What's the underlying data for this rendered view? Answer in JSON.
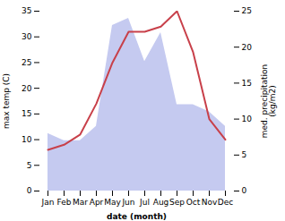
{
  "chart_data": {
    "type": "line",
    "categories": [
      "Jan",
      "Feb",
      "Mar",
      "Apr",
      "May",
      "Jun",
      "Jul",
      "Aug",
      "Sep",
      "Oct",
      "Nov",
      "Dec"
    ],
    "xlabel": "date (month)",
    "ylabel": "max temp (C)",
    "y2label": "med. precipitation\n(kg/m2)",
    "ylim": [
      0,
      35
    ],
    "yticks": [
      0,
      5,
      10,
      15,
      20,
      25,
      30,
      35
    ],
    "y2lim": [
      0,
      25
    ],
    "y2ticks": [
      0,
      5,
      10,
      15,
      20,
      25
    ],
    "series": [
      {
        "type": "line",
        "color": "#c8404a",
        "values": [
          8,
          9,
          11,
          17,
          25,
          31,
          31,
          32,
          35,
          27,
          14,
          10
        ]
      },
      {
        "type": "area",
        "color": "#c5caf0",
        "axis": "y2",
        "values": [
          8,
          7,
          7,
          9,
          23,
          24,
          18,
          22,
          12,
          12,
          11,
          9
        ]
      }
    ]
  }
}
